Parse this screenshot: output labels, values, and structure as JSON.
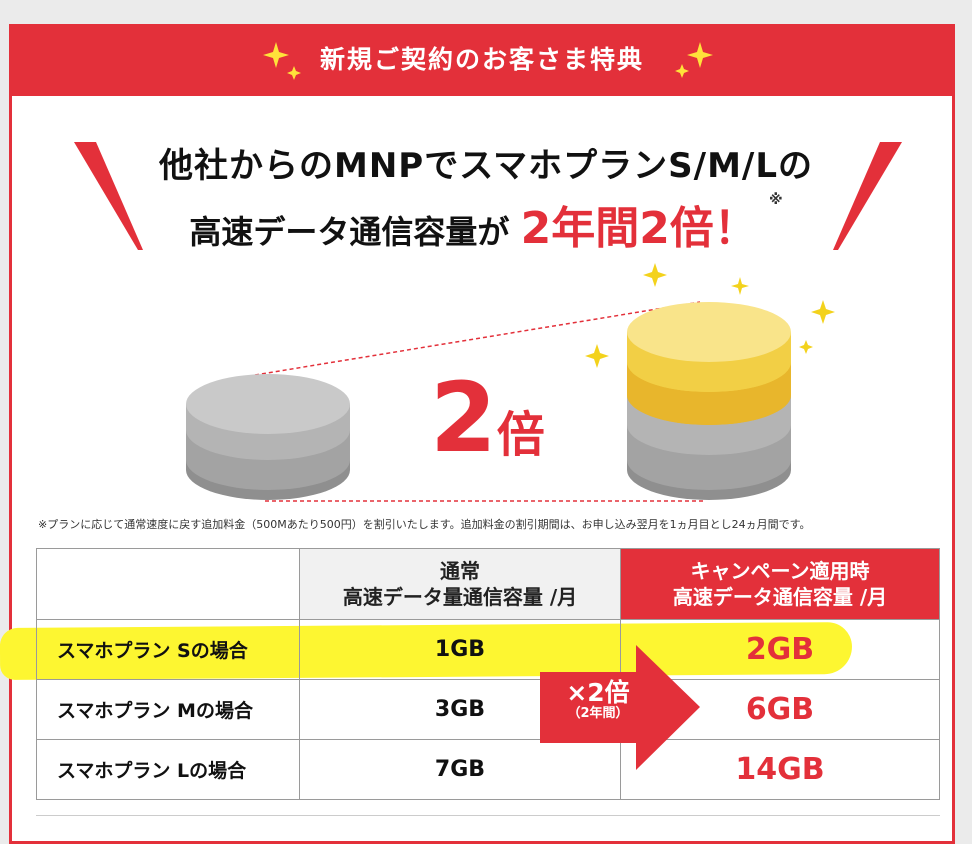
{
  "banner": {
    "title": "新規ご契約のお客さま特典"
  },
  "headline": {
    "line1": "他社からのMNPでスマホプランS/M/Lの",
    "line2_prefix": "高速データ通信容量が",
    "line2_emphasis": "2年間2倍！",
    "line2_mark": "※"
  },
  "visual": {
    "multiplier_number": "2",
    "multiplier_unit": "倍"
  },
  "footnote": "※プランに応じて通常速度に戻す追加料金（500Mあたり500円）を割引いたします。追加料金の割引期間は、お申し込み翌月を1ヵ月目とし24ヵ月間です。",
  "table": {
    "header": {
      "normal_line1": "通常",
      "normal_line2": "高速データ量通信容量 /月",
      "campaign_line1": "キャンペーン適用時",
      "campaign_line2": "高速データ通信容量 /月"
    },
    "rows": [
      {
        "plan": "スマホプラン  Sの場合",
        "normal": "1GB",
        "campaign": "2GB"
      },
      {
        "plan": "スマホプラン  Mの場合",
        "normal": "3GB",
        "campaign": "6GB"
      },
      {
        "plan": "スマホプラン  Lの場合",
        "normal": "7GB",
        "campaign": "14GB"
      }
    ]
  },
  "arrow": {
    "label": "×2倍",
    "sublabel": "（2年間）"
  },
  "colors": {
    "accent": "#e3303a",
    "highlight": "#fdf631",
    "gold": "#f2c428",
    "gray": "#a8a8a8"
  }
}
